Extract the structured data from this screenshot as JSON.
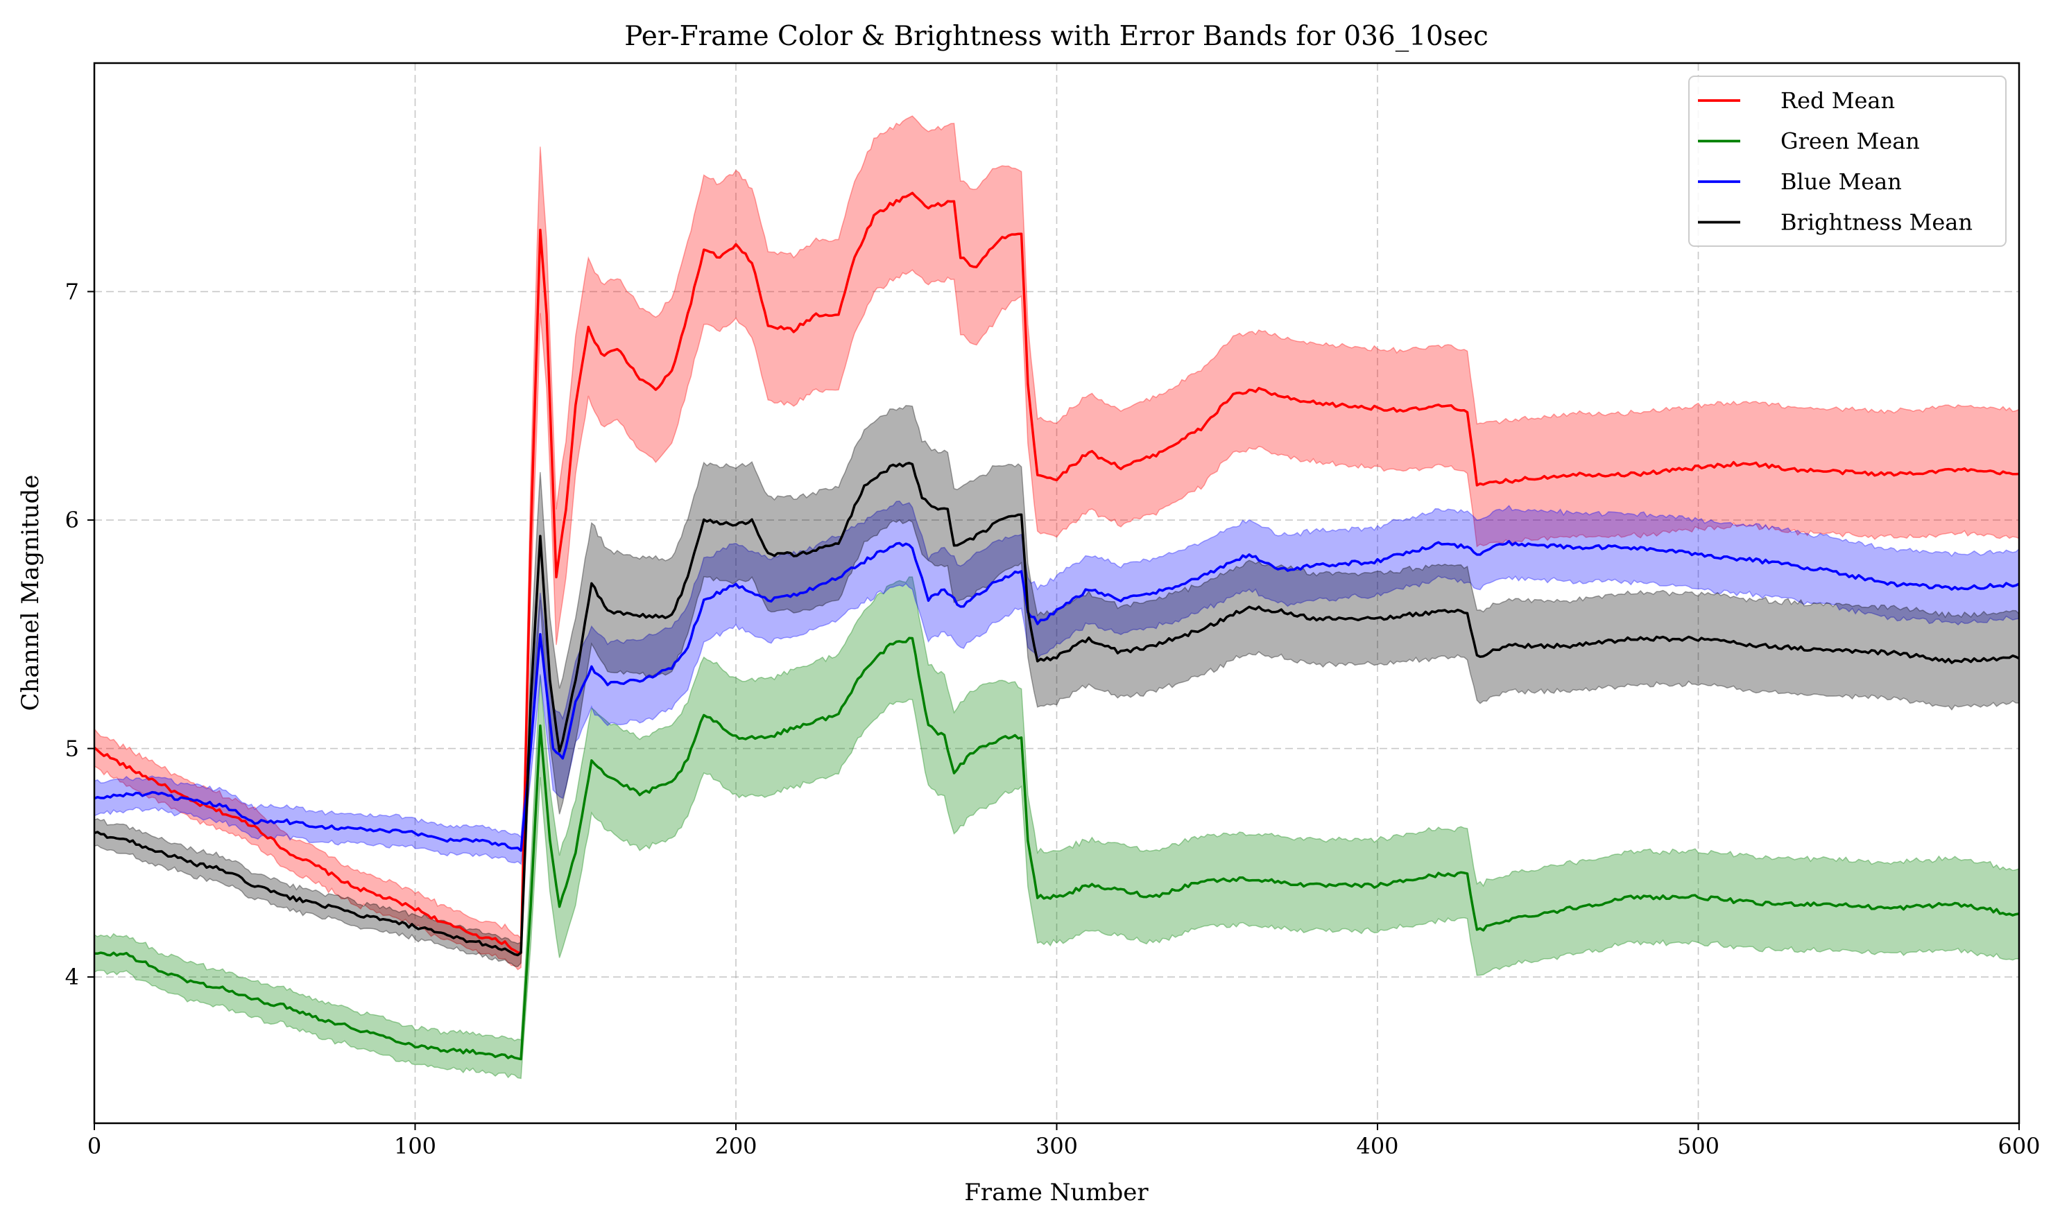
{
  "chart_data": {
    "type": "line",
    "title": "Per-Frame Color & Brightness with Error Bands for 036_10sec",
    "xlabel": "Frame Number",
    "ylabel": "Channel Magnitude",
    "xlim": [
      0,
      600
    ],
    "ylim": [
      3.36,
      8.0
    ],
    "xticks": [
      0,
      100,
      200,
      300,
      400,
      500,
      600
    ],
    "yticks": [
      4,
      5,
      6,
      7
    ],
    "grid": true,
    "legend_position": "top-right",
    "series": [
      {
        "name": "Red Mean",
        "color": "#ff0000",
        "band_color": "#ff0000",
        "band_halfwidth": [
          [
            0,
            0.08
          ],
          [
            133,
            0.07
          ],
          [
            138,
            0.38
          ],
          [
            142,
            0.3
          ],
          [
            180,
            0.32
          ],
          [
            280,
            0.34
          ],
          [
            292,
            0.25
          ],
          [
            600,
            0.28
          ]
        ],
        "points": [
          [
            0,
            5.0
          ],
          [
            10,
            4.92
          ],
          [
            20,
            4.85
          ],
          [
            30,
            4.77
          ],
          [
            40,
            4.72
          ],
          [
            50,
            4.66
          ],
          [
            60,
            4.55
          ],
          [
            70,
            4.48
          ],
          [
            80,
            4.4
          ],
          [
            90,
            4.35
          ],
          [
            100,
            4.3
          ],
          [
            110,
            4.23
          ],
          [
            120,
            4.18
          ],
          [
            128,
            4.15
          ],
          [
            133,
            4.1
          ],
          [
            136,
            5.9
          ],
          [
            139,
            7.27
          ],
          [
            141,
            6.9
          ],
          [
            144,
            5.75
          ],
          [
            147,
            6.05
          ],
          [
            150,
            6.5
          ],
          [
            154,
            6.85
          ],
          [
            158,
            6.72
          ],
          [
            163,
            6.75
          ],
          [
            170,
            6.62
          ],
          [
            175,
            6.57
          ],
          [
            180,
            6.65
          ],
          [
            185,
            6.9
          ],
          [
            190,
            7.18
          ],
          [
            195,
            7.15
          ],
          [
            200,
            7.2
          ],
          [
            205,
            7.13
          ],
          [
            210,
            6.85
          ],
          [
            218,
            6.83
          ],
          [
            225,
            6.9
          ],
          [
            232,
            6.9
          ],
          [
            237,
            7.15
          ],
          [
            243,
            7.33
          ],
          [
            248,
            7.38
          ],
          [
            255,
            7.43
          ],
          [
            260,
            7.37
          ],
          [
            264,
            7.38
          ],
          [
            268,
            7.4
          ],
          [
            270,
            7.15
          ],
          [
            275,
            7.1
          ],
          [
            280,
            7.2
          ],
          [
            285,
            7.25
          ],
          [
            289,
            7.25
          ],
          [
            291,
            6.6
          ],
          [
            294,
            6.2
          ],
          [
            300,
            6.18
          ],
          [
            310,
            6.3
          ],
          [
            320,
            6.23
          ],
          [
            330,
            6.28
          ],
          [
            345,
            6.4
          ],
          [
            355,
            6.55
          ],
          [
            363,
            6.57
          ],
          [
            375,
            6.52
          ],
          [
            390,
            6.5
          ],
          [
            410,
            6.48
          ],
          [
            420,
            6.5
          ],
          [
            428,
            6.48
          ],
          [
            431,
            6.15
          ],
          [
            440,
            6.17
          ],
          [
            460,
            6.2
          ],
          [
            480,
            6.2
          ],
          [
            500,
            6.23
          ],
          [
            515,
            6.25
          ],
          [
            530,
            6.22
          ],
          [
            560,
            6.2
          ],
          [
            580,
            6.22
          ],
          [
            600,
            6.2
          ]
        ]
      },
      {
        "name": "Green Mean",
        "color": "#008000",
        "band_color": "#008000",
        "band_halfwidth": [
          [
            0,
            0.08
          ],
          [
            133,
            0.08
          ],
          [
            138,
            0.22
          ],
          [
            180,
            0.25
          ],
          [
            280,
            0.27
          ],
          [
            292,
            0.2
          ],
          [
            600,
            0.2
          ]
        ],
        "points": [
          [
            0,
            4.1
          ],
          [
            10,
            4.1
          ],
          [
            20,
            4.03
          ],
          [
            30,
            3.98
          ],
          [
            40,
            3.95
          ],
          [
            50,
            3.9
          ],
          [
            60,
            3.87
          ],
          [
            70,
            3.82
          ],
          [
            80,
            3.78
          ],
          [
            90,
            3.74
          ],
          [
            100,
            3.7
          ],
          [
            110,
            3.68
          ],
          [
            120,
            3.67
          ],
          [
            133,
            3.64
          ],
          [
            136,
            4.3
          ],
          [
            139,
            5.1
          ],
          [
            142,
            4.6
          ],
          [
            145,
            4.3
          ],
          [
            150,
            4.55
          ],
          [
            155,
            4.95
          ],
          [
            160,
            4.88
          ],
          [
            170,
            4.8
          ],
          [
            180,
            4.85
          ],
          [
            185,
            4.95
          ],
          [
            190,
            5.15
          ],
          [
            200,
            5.05
          ],
          [
            210,
            5.05
          ],
          [
            220,
            5.1
          ],
          [
            232,
            5.15
          ],
          [
            240,
            5.35
          ],
          [
            248,
            5.45
          ],
          [
            255,
            5.48
          ],
          [
            260,
            5.1
          ],
          [
            265,
            5.05
          ],
          [
            268,
            4.9
          ],
          [
            275,
            5.0
          ],
          [
            285,
            5.05
          ],
          [
            289,
            5.05
          ],
          [
            291,
            4.6
          ],
          [
            294,
            4.35
          ],
          [
            300,
            4.35
          ],
          [
            310,
            4.4
          ],
          [
            320,
            4.38
          ],
          [
            330,
            4.35
          ],
          [
            345,
            4.42
          ],
          [
            360,
            4.43
          ],
          [
            380,
            4.4
          ],
          [
            400,
            4.4
          ],
          [
            420,
            4.45
          ],
          [
            428,
            4.45
          ],
          [
            431,
            4.2
          ],
          [
            440,
            4.25
          ],
          [
            460,
            4.3
          ],
          [
            480,
            4.35
          ],
          [
            500,
            4.35
          ],
          [
            520,
            4.32
          ],
          [
            540,
            4.32
          ],
          [
            560,
            4.3
          ],
          [
            580,
            4.32
          ],
          [
            600,
            4.27
          ]
        ]
      },
      {
        "name": "Blue Mean",
        "color": "#0000ff",
        "band_color": "#0000ff",
        "band_halfwidth": [
          [
            0,
            0.07
          ],
          [
            133,
            0.06
          ],
          [
            138,
            0.18
          ],
          [
            180,
            0.18
          ],
          [
            280,
            0.18
          ],
          [
            292,
            0.15
          ],
          [
            600,
            0.15
          ]
        ],
        "points": [
          [
            0,
            4.78
          ],
          [
            10,
            4.8
          ],
          [
            20,
            4.8
          ],
          [
            30,
            4.77
          ],
          [
            40,
            4.75
          ],
          [
            50,
            4.68
          ],
          [
            60,
            4.68
          ],
          [
            70,
            4.66
          ],
          [
            80,
            4.65
          ],
          [
            90,
            4.64
          ],
          [
            100,
            4.63
          ],
          [
            110,
            4.6
          ],
          [
            120,
            4.6
          ],
          [
            133,
            4.56
          ],
          [
            136,
            5.0
          ],
          [
            139,
            5.5
          ],
          [
            143,
            5.0
          ],
          [
            146,
            4.95
          ],
          [
            150,
            5.2
          ],
          [
            155,
            5.35
          ],
          [
            160,
            5.28
          ],
          [
            170,
            5.3
          ],
          [
            180,
            5.35
          ],
          [
            185,
            5.45
          ],
          [
            190,
            5.65
          ],
          [
            200,
            5.72
          ],
          [
            210,
            5.65
          ],
          [
            220,
            5.68
          ],
          [
            232,
            5.75
          ],
          [
            240,
            5.82
          ],
          [
            250,
            5.9
          ],
          [
            255,
            5.88
          ],
          [
            260,
            5.65
          ],
          [
            265,
            5.7
          ],
          [
            270,
            5.62
          ],
          [
            280,
            5.72
          ],
          [
            289,
            5.78
          ],
          [
            291,
            5.6
          ],
          [
            294,
            5.55
          ],
          [
            300,
            5.6
          ],
          [
            310,
            5.7
          ],
          [
            320,
            5.65
          ],
          [
            330,
            5.68
          ],
          [
            345,
            5.75
          ],
          [
            360,
            5.85
          ],
          [
            370,
            5.78
          ],
          [
            380,
            5.8
          ],
          [
            400,
            5.82
          ],
          [
            420,
            5.9
          ],
          [
            428,
            5.88
          ],
          [
            431,
            5.85
          ],
          [
            440,
            5.9
          ],
          [
            460,
            5.88
          ],
          [
            480,
            5.88
          ],
          [
            500,
            5.85
          ],
          [
            520,
            5.82
          ],
          [
            540,
            5.78
          ],
          [
            560,
            5.72
          ],
          [
            580,
            5.7
          ],
          [
            600,
            5.72
          ]
        ]
      },
      {
        "name": "Brightness Mean",
        "color": "#000000",
        "band_color": "#000000",
        "band_halfwidth": [
          [
            0,
            0.06
          ],
          [
            133,
            0.05
          ],
          [
            138,
            0.28
          ],
          [
            180,
            0.25
          ],
          [
            280,
            0.25
          ],
          [
            292,
            0.2
          ],
          [
            600,
            0.2
          ]
        ],
        "points": [
          [
            0,
            4.63
          ],
          [
            10,
            4.6
          ],
          [
            20,
            4.55
          ],
          [
            30,
            4.5
          ],
          [
            40,
            4.47
          ],
          [
            50,
            4.4
          ],
          [
            60,
            4.35
          ],
          [
            70,
            4.32
          ],
          [
            80,
            4.28
          ],
          [
            90,
            4.25
          ],
          [
            100,
            4.22
          ],
          [
            110,
            4.18
          ],
          [
            120,
            4.15
          ],
          [
            133,
            4.1
          ],
          [
            136,
            5.2
          ],
          [
            139,
            5.93
          ],
          [
            142,
            5.3
          ],
          [
            145,
            4.98
          ],
          [
            150,
            5.3
          ],
          [
            155,
            5.72
          ],
          [
            160,
            5.6
          ],
          [
            170,
            5.58
          ],
          [
            180,
            5.58
          ],
          [
            185,
            5.75
          ],
          [
            190,
            6.0
          ],
          [
            200,
            5.98
          ],
          [
            205,
            6.0
          ],
          [
            210,
            5.85
          ],
          [
            220,
            5.85
          ],
          [
            232,
            5.9
          ],
          [
            240,
            6.15
          ],
          [
            248,
            6.23
          ],
          [
            255,
            6.25
          ],
          [
            258,
            6.1
          ],
          [
            262,
            6.05
          ],
          [
            266,
            6.05
          ],
          [
            268,
            5.88
          ],
          [
            275,
            5.93
          ],
          [
            285,
            6.02
          ],
          [
            289,
            6.03
          ],
          [
            291,
            5.6
          ],
          [
            294,
            5.38
          ],
          [
            300,
            5.4
          ],
          [
            310,
            5.48
          ],
          [
            320,
            5.42
          ],
          [
            330,
            5.45
          ],
          [
            345,
            5.52
          ],
          [
            360,
            5.62
          ],
          [
            370,
            5.6
          ],
          [
            380,
            5.57
          ],
          [
            400,
            5.57
          ],
          [
            420,
            5.6
          ],
          [
            428,
            5.6
          ],
          [
            431,
            5.4
          ],
          [
            440,
            5.45
          ],
          [
            460,
            5.45
          ],
          [
            480,
            5.48
          ],
          [
            500,
            5.48
          ],
          [
            520,
            5.45
          ],
          [
            540,
            5.43
          ],
          [
            560,
            5.42
          ],
          [
            580,
            5.38
          ],
          [
            600,
            5.4
          ]
        ]
      }
    ]
  }
}
